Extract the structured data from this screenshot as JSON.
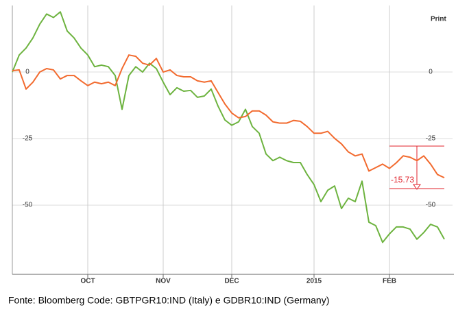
{
  "chart_data": {
    "type": "line",
    "top_label": "Print",
    "annotation": "-15.73",
    "source": "Fonte: Bloomberg   Code: GBTPGR10:IND (Italy) e GDBR10:IND (Germany)",
    "categories": [
      null,
      null,
      null,
      null,
      null,
      null,
      null,
      null,
      null,
      null,
      null,
      "OCT",
      null,
      null,
      null,
      null,
      null,
      null,
      null,
      null,
      null,
      null,
      "NOV",
      null,
      null,
      null,
      null,
      null,
      null,
      null,
      null,
      null,
      "DEC",
      null,
      null,
      null,
      null,
      null,
      null,
      null,
      null,
      null,
      null,
      null,
      "2015",
      null,
      null,
      null,
      null,
      null,
      null,
      null,
      null,
      null,
      null,
      "FEB",
      null,
      null,
      null,
      null,
      null,
      null,
      null,
      null
    ],
    "series": [
      {
        "color": "#6db33f",
        "values": [
          0,
          6.4,
          9,
          12.8,
          18,
          21.8,
          20.5,
          22.6,
          15.4,
          12.8,
          9,
          6.4,
          2,
          2.6,
          2,
          -1.3,
          -14,
          -1.3,
          2,
          0,
          3.3,
          1.3,
          -3.8,
          -8.5,
          -5.9,
          -7.2,
          -6.9,
          -9.5,
          -9,
          -6.4,
          -12.8,
          -18,
          -20,
          -18.7,
          -14,
          -20.5,
          -23,
          -30.8,
          -33.3,
          -32,
          -33.3,
          -34,
          -34,
          -38.5,
          -42.3,
          -48.7,
          -44.4,
          -42.8,
          -51.3,
          -47.4,
          -48.7,
          -41,
          -56.4,
          -57.7,
          -64,
          -60.8,
          -58.2,
          -58.2,
          -59,
          -62.8,
          -60.3,
          -57.2,
          -58.2,
          -62.8
        ]
      },
      {
        "color": "#f26a2e",
        "values": [
          0.5,
          0.8,
          -6.4,
          -3.8,
          0,
          1.3,
          0.8,
          -2.6,
          -1.3,
          -1.3,
          -3.3,
          -5.1,
          -3.8,
          -4.4,
          -3.8,
          -5.1,
          1.3,
          6.4,
          5.9,
          3.3,
          2.6,
          5.1,
          0,
          0.8,
          -1.3,
          -1.8,
          -1.8,
          -3.3,
          -3.8,
          -3.3,
          -7.7,
          -12,
          -15.4,
          -17.2,
          -16.7,
          -14.6,
          -14.6,
          -16.2,
          -18.7,
          -19.2,
          -19.2,
          -18.2,
          -18.5,
          -20.5,
          -23,
          -23,
          -22.3,
          -24.9,
          -27,
          -30,
          -31.5,
          -30.8,
          -37.2,
          -35.9,
          -34.6,
          -36.2,
          -34.1,
          -31.5,
          -32,
          -33.3,
          -31.5,
          -34.6,
          -38.5,
          -39.7
        ]
      }
    ],
    "ylim": [
      -76,
      25
    ],
    "yticks": [
      0,
      -25,
      -50
    ],
    "grid": true
  }
}
